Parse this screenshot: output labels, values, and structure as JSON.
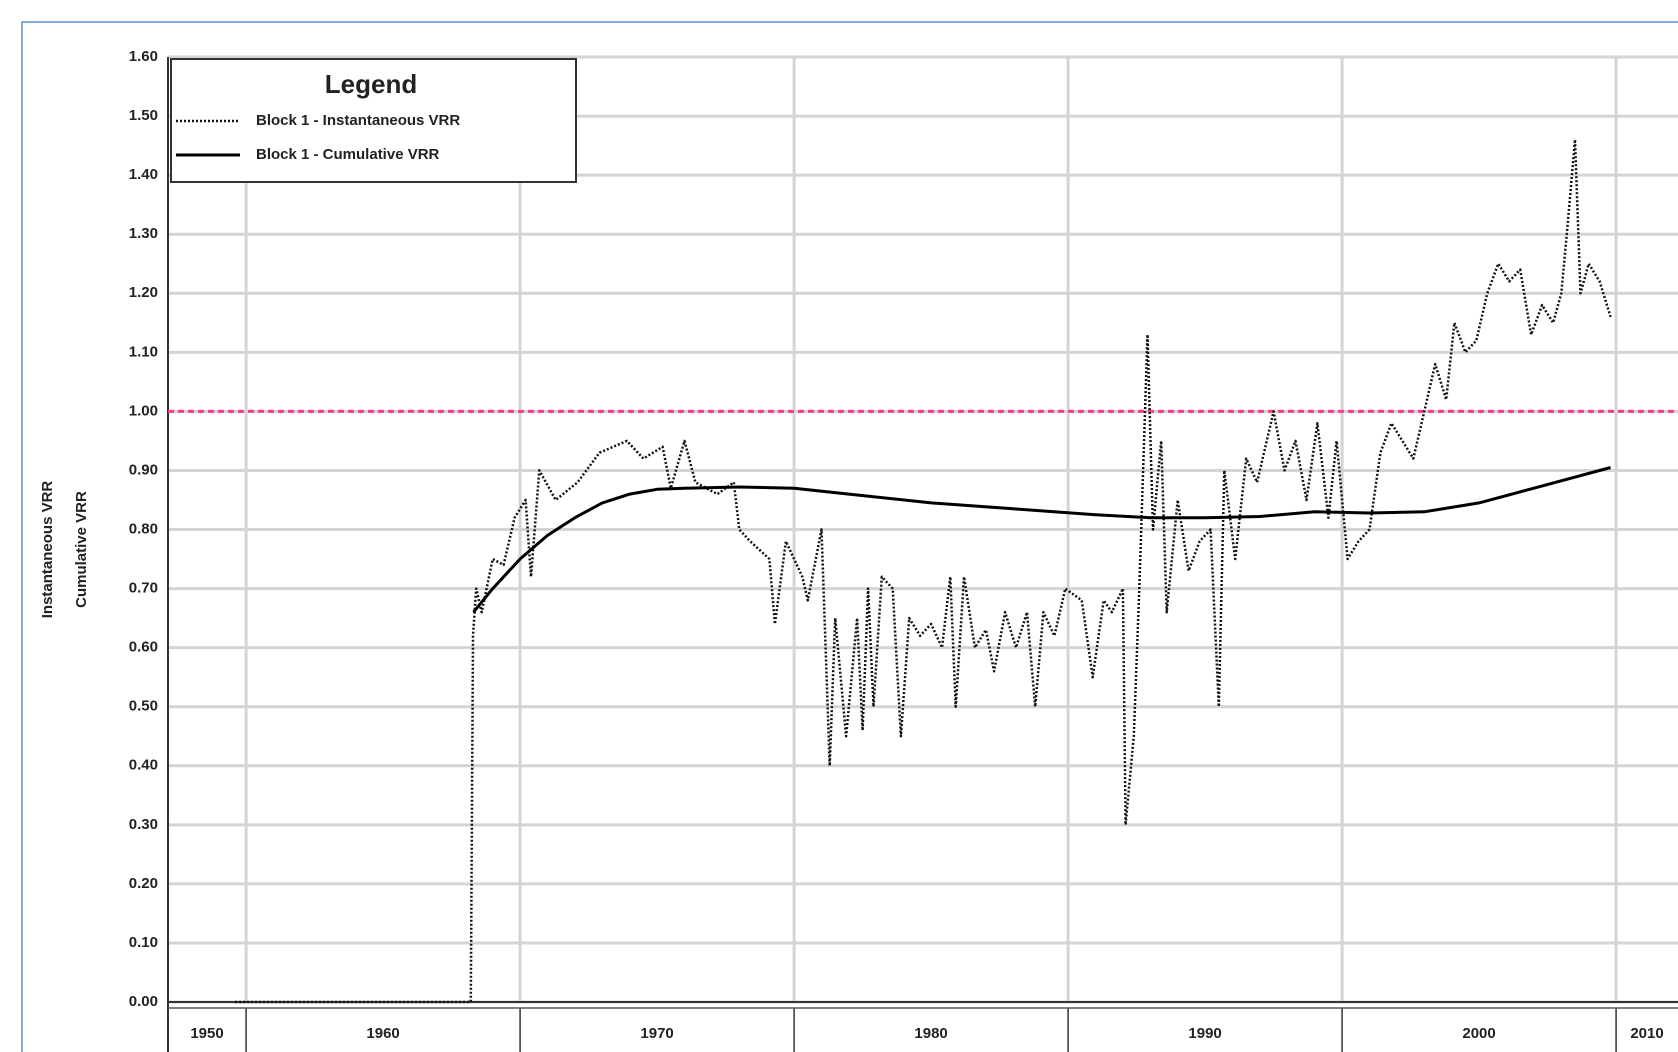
{
  "chart_data": {
    "type": "line",
    "legend_title": "Legend",
    "y_label": [
      "Instantaneous VRR",
      "Cumulative VRR"
    ],
    "xlim": [
      1957.15,
      2012.26
    ],
    "xticks": [
      1950,
      1960,
      1970,
      1980,
      1990,
      2000,
      2010
    ],
    "ylim": [
      0,
      1.6
    ],
    "yticks": [
      {
        "value": 0,
        "label": "0.00"
      },
      {
        "value": 0.1,
        "label": "0.10"
      },
      {
        "value": 0.2,
        "label": "0.20"
      },
      {
        "value": 0.3,
        "label": "0.30"
      },
      {
        "value": 0.4,
        "label": "0.40"
      },
      {
        "value": 0.5,
        "label": "0.50"
      },
      {
        "value": 0.6,
        "label": "0.60"
      },
      {
        "value": 0.7,
        "label": "0.70"
      },
      {
        "value": 0.8,
        "label": "0.80"
      },
      {
        "value": 0.9,
        "label": "0.90"
      },
      {
        "value": 1,
        "label": "1.00"
      },
      {
        "value": 1.1,
        "label": "1.10"
      },
      {
        "value": 1.2,
        "label": "1.20"
      },
      {
        "value": 1.3,
        "label": "1.30"
      },
      {
        "value": 1.4,
        "label": "1.40"
      },
      {
        "value": 1.5,
        "label": "1.50"
      },
      {
        "value": 1.6,
        "label": "1.60"
      }
    ],
    "grid": true,
    "legend": "top-left",
    "reference_line": {
      "value": 1,
      "color": "#ff3d8b"
    },
    "series": [
      {
        "name": "Block 1 - Instantaneous VRR",
        "color": "#111111",
        "style": "dotted",
        "x": [
          1959.6,
          1968.2,
          1968.28,
          1968.4,
          1968.6,
          1969.0,
          1969.4,
          1969.8,
          1970.2,
          1970.4,
          1970.7,
          1971.3,
          1972.1,
          1972.9,
          1973.9,
          1974.5,
          1975.2,
          1975.5,
          1976.0,
          1976.4,
          1977.2,
          1977.8,
          1978.0,
          1978.4,
          1979.1,
          1979.3,
          1979.7,
          1980.3,
          1980.5,
          1981.0,
          1981.3,
          1981.5,
          1981.9,
          1982.3,
          1982.5,
          1982.7,
          1982.9,
          1983.2,
          1983.6,
          1983.9,
          1984.2,
          1984.6,
          1985.0,
          1985.4,
          1985.7,
          1985.9,
          1986.2,
          1986.6,
          1987.0,
          1987.3,
          1987.7,
          1988.1,
          1988.5,
          1988.8,
          1989.1,
          1989.5,
          1989.9,
          1990.5,
          1990.9,
          1991.3,
          1991.6,
          1992.0,
          1992.1,
          1992.4,
          1992.6,
          1992.9,
          1993.1,
          1993.4,
          1993.6,
          1994.0,
          1994.4,
          1994.8,
          1995.2,
          1995.5,
          1995.7,
          1996.1,
          1996.5,
          1996.9,
          1997.5,
          1997.9,
          1998.3,
          1998.7,
          1999.1,
          1999.5,
          1999.8,
          2000.2,
          2000.6,
          2001.0,
          2001.4,
          2001.8,
          2002.2,
          2002.6,
          2003.0,
          2003.4,
          2003.8,
          2004.1,
          2004.5,
          2004.9,
          2005.3,
          2005.7,
          2006.1,
          2006.5,
          2006.9,
          2007.3,
          2007.7,
          2008.0,
          2008.2,
          2008.5,
          2008.7,
          2009.0,
          2009.4,
          2009.8
        ],
        "values": [
          0,
          0,
          0.62,
          0.7,
          0.66,
          0.75,
          0.74,
          0.82,
          0.85,
          0.72,
          0.9,
          0.85,
          0.88,
          0.93,
          0.95,
          0.92,
          0.94,
          0.87,
          0.95,
          0.88,
          0.86,
          0.88,
          0.8,
          0.78,
          0.75,
          0.64,
          0.78,
          0.72,
          0.68,
          0.8,
          0.4,
          0.65,
          0.45,
          0.65,
          0.46,
          0.7,
          0.5,
          0.72,
          0.7,
          0.45,
          0.65,
          0.62,
          0.64,
          0.6,
          0.72,
          0.5,
          0.72,
          0.6,
          0.63,
          0.56,
          0.66,
          0.6,
          0.66,
          0.5,
          0.66,
          0.62,
          0.7,
          0.68,
          0.55,
          0.68,
          0.66,
          0.7,
          0.3,
          0.45,
          0.7,
          1.13,
          0.8,
          0.95,
          0.66,
          0.85,
          0.73,
          0.78,
          0.8,
          0.5,
          0.9,
          0.75,
          0.92,
          0.88,
          1.0,
          0.9,
          0.95,
          0.85,
          0.98,
          0.82,
          0.95,
          0.75,
          0.78,
          0.8,
          0.93,
          0.98,
          0.95,
          0.92,
          1.0,
          1.08,
          1.02,
          1.15,
          1.1,
          1.12,
          1.2,
          1.25,
          1.22,
          1.24,
          1.13,
          1.18,
          1.15,
          1.2,
          1.3,
          1.46,
          1.2,
          1.25,
          1.22,
          1.16
        ]
      },
      {
        "name": "Block 1 - Cumulative VRR",
        "color": "#000000",
        "style": "solid",
        "x": [
          1968.3,
          1969,
          1970,
          1971,
          1972,
          1973,
          1974,
          1975,
          1976,
          1978,
          1980,
          1982,
          1985,
          1988,
          1991,
          1993,
          1995,
          1997,
          1999,
          2001,
          2003,
          2005,
          2007,
          2009.8
        ],
        "values": [
          0.66,
          0.7,
          0.75,
          0.79,
          0.82,
          0.845,
          0.86,
          0.868,
          0.87,
          0.872,
          0.87,
          0.86,
          0.845,
          0.835,
          0.825,
          0.82,
          0.82,
          0.822,
          0.83,
          0.828,
          0.83,
          0.845,
          0.87,
          0.905
        ]
      }
    ]
  }
}
